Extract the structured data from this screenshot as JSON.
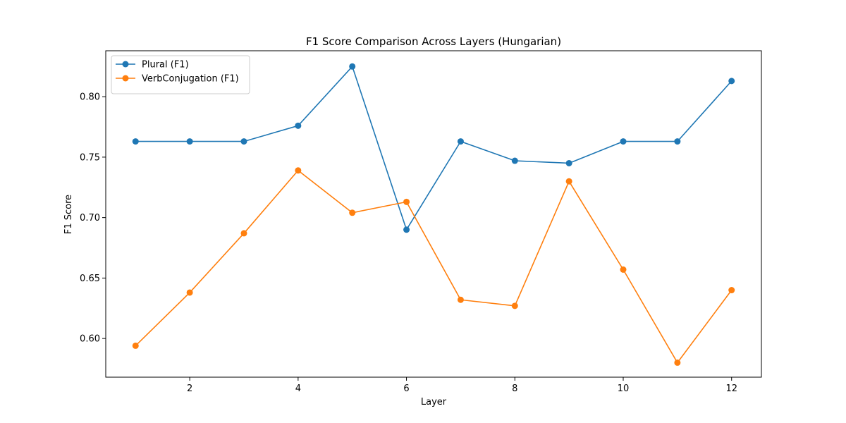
{
  "chart_data": {
    "type": "line",
    "title": "F1 Score Comparison Across Layers (Hungarian)",
    "xlabel": "Layer",
    "ylabel": "F1 Score",
    "x": [
      1,
      2,
      3,
      4,
      5,
      6,
      7,
      8,
      9,
      10,
      11,
      12
    ],
    "xticks": [
      "2",
      "4",
      "6",
      "8",
      "10",
      "12"
    ],
    "yticks": [
      "0.60",
      "0.65",
      "0.70",
      "0.75",
      "0.80"
    ],
    "xlim": [
      0.45,
      12.55
    ],
    "ylim": [
      0.568,
      0.838
    ],
    "grid": false,
    "legend_position": "top-left",
    "series": [
      {
        "name": "Plural (F1)",
        "color": "#1f77b4",
        "values": [
          0.763,
          0.763,
          0.763,
          0.776,
          0.825,
          0.69,
          0.763,
          0.747,
          0.745,
          0.763,
          0.763,
          0.813
        ]
      },
      {
        "name": "VerbConjugation (F1)",
        "color": "#ff7f0e",
        "values": [
          0.594,
          0.638,
          0.687,
          0.739,
          0.704,
          0.713,
          0.632,
          0.627,
          0.73,
          0.657,
          0.58,
          0.64
        ]
      }
    ]
  }
}
